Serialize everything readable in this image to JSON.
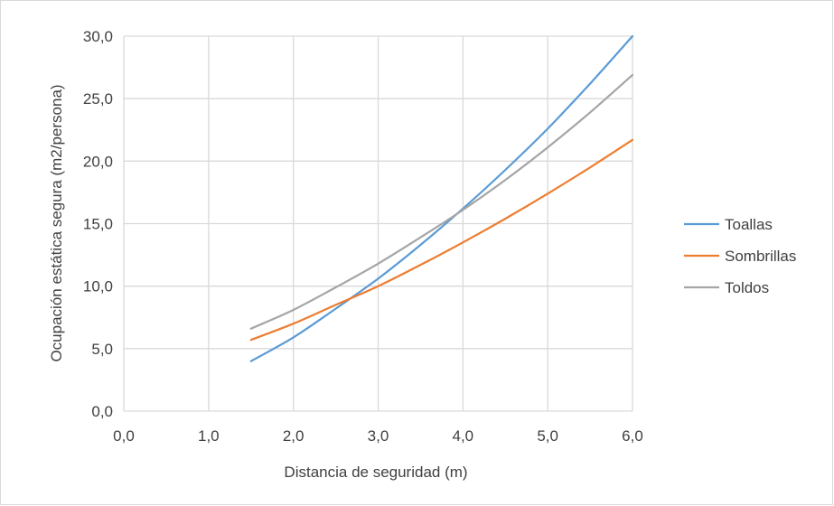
{
  "chart_data": {
    "type": "line",
    "title": "",
    "xlabel": "Distancia de seguridad (m)",
    "ylabel": "Ocupación estática segura (m2/persona)",
    "xlim": [
      0,
      6
    ],
    "ylim": [
      0,
      30
    ],
    "x_ticks": [
      "0,0",
      "1,0",
      "2,0",
      "3,0",
      "4,0",
      "5,0",
      "6,0"
    ],
    "y_ticks": [
      "0,0",
      "5,0",
      "10,0",
      "15,0",
      "20,0",
      "25,0",
      "30,0"
    ],
    "grid": true,
    "legend_position": "right",
    "x": [
      1.5,
      2.0,
      2.5,
      3.0,
      3.5,
      4.0,
      4.5,
      5.0,
      5.5,
      6.0
    ],
    "series": [
      {
        "name": "Toallas",
        "color": "#5b9bd5",
        "values": [
          4.0,
          5.9,
          8.2,
          10.6,
          13.3,
          16.2,
          19.3,
          22.6,
          26.2,
          30.0
        ]
      },
      {
        "name": "Sombrillas",
        "color": "#ed7d31",
        "values": [
          5.7,
          7.0,
          8.5,
          10.0,
          11.7,
          13.5,
          15.4,
          17.4,
          19.5,
          21.7
        ]
      },
      {
        "name": "Toldos",
        "color": "#a5a5a5",
        "values": [
          6.6,
          8.1,
          9.9,
          11.8,
          13.9,
          16.1,
          18.5,
          21.1,
          23.9,
          26.9
        ]
      }
    ]
  }
}
